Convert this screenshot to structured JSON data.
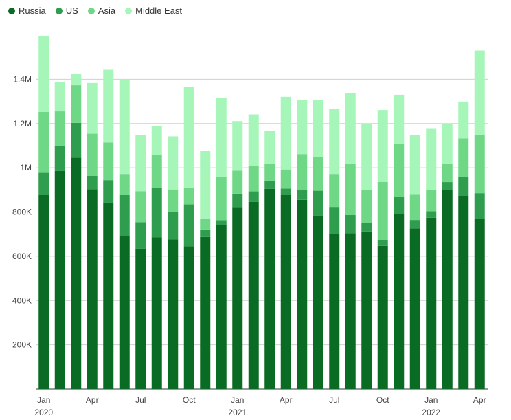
{
  "chart_data": {
    "type": "bar",
    "stacked": true,
    "legend_position": "top-left",
    "grid": "horizontal",
    "ylim": [
      0,
      1600000
    ],
    "y_ticks": [
      {
        "value": 200000,
        "label": "200K"
      },
      {
        "value": 400000,
        "label": "400K"
      },
      {
        "value": 600000,
        "label": "600K"
      },
      {
        "value": 800000,
        "label": "800K"
      },
      {
        "value": 1000000,
        "label": "1M"
      },
      {
        "value": 1200000,
        "label": "1.2M"
      },
      {
        "value": 1400000,
        "label": "1.4M"
      }
    ],
    "x_ticks": [
      {
        "index": 0,
        "label": "Jan",
        "year": "2020"
      },
      {
        "index": 3,
        "label": "Apr",
        "year": ""
      },
      {
        "index": 6,
        "label": "Jul",
        "year": ""
      },
      {
        "index": 9,
        "label": "Oct",
        "year": ""
      },
      {
        "index": 12,
        "label": "Jan",
        "year": "2021"
      },
      {
        "index": 15,
        "label": "Apr",
        "year": ""
      },
      {
        "index": 18,
        "label": "Jul",
        "year": ""
      },
      {
        "index": 21,
        "label": "Oct",
        "year": ""
      },
      {
        "index": 24,
        "label": "Jan",
        "year": "2022"
      },
      {
        "index": 27,
        "label": "Apr",
        "year": ""
      }
    ],
    "categories": [
      "Jan 2020",
      "Feb 2020",
      "Mar 2020",
      "Apr 2020",
      "May 2020",
      "Jun 2020",
      "Jul 2020",
      "Aug 2020",
      "Sep 2020",
      "Oct 2020",
      "Nov 2020",
      "Dec 2020",
      "Jan 2021",
      "Feb 2021",
      "Mar 2021",
      "Apr 2021",
      "May 2021",
      "Jun 2021",
      "Jul 2021",
      "Aug 2021",
      "Sep 2021",
      "Oct 2021",
      "Nov 2021",
      "Dec 2021",
      "Jan 2022",
      "Feb 2022",
      "Mar 2022",
      "Apr 2022"
    ],
    "series": [
      {
        "name": "Russia",
        "color": "#0a6b24",
        "values": [
          878000,
          985000,
          1046000,
          903000,
          842000,
          694000,
          634000,
          685000,
          676000,
          645000,
          687000,
          741000,
          822000,
          846000,
          905000,
          877000,
          855000,
          783000,
          702000,
          704000,
          712000,
          647000,
          792000,
          726000,
          774000,
          901000,
          873000,
          769000
        ]
      },
      {
        "name": "US",
        "color": "#2e9e4e",
        "values": [
          102000,
          113000,
          157000,
          61000,
          102000,
          185000,
          120000,
          225000,
          125000,
          189000,
          34000,
          22000,
          61000,
          47000,
          37000,
          29000,
          45000,
          113000,
          121000,
          82000,
          37000,
          28000,
          77000,
          38000,
          29000,
          34000,
          84000,
          116000
        ]
      },
      {
        "name": "Asia",
        "color": "#6ed886",
        "values": [
          272000,
          157000,
          170000,
          190000,
          170000,
          93000,
          140000,
          147000,
          101000,
          75000,
          50000,
          197000,
          104000,
          114000,
          74000,
          86000,
          162000,
          154000,
          149000,
          232000,
          150000,
          261000,
          238000,
          117000,
          96000,
          84000,
          176000,
          265000
        ]
      },
      {
        "name": "Middle East",
        "color": "#a6f5b9",
        "values": [
          345000,
          131000,
          50000,
          229000,
          329000,
          426000,
          255000,
          133000,
          240000,
          456000,
          306000,
          355000,
          224000,
          234000,
          151000,
          329000,
          243000,
          257000,
          294000,
          321000,
          299000,
          325000,
          223000,
          266000,
          280000,
          181000,
          166000,
          380000
        ]
      }
    ]
  }
}
